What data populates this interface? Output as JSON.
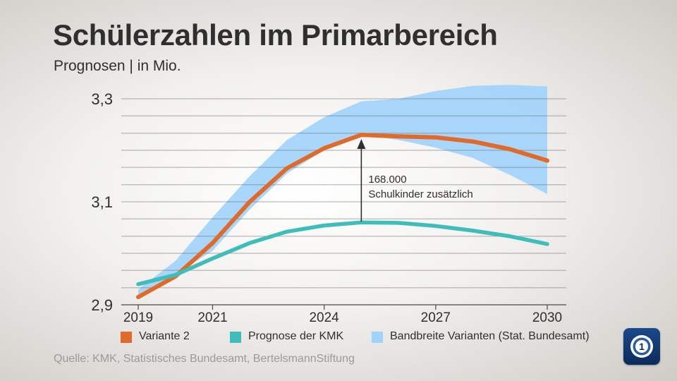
{
  "header": {
    "title": "Schülerzahlen im Primarbereich",
    "subtitle": "Prognosen | in Mio."
  },
  "legend": [
    {
      "label": "Variante 2",
      "color": "#e06a2a"
    },
    {
      "label": "Prognose der KMK",
      "color": "#3fbdb9"
    },
    {
      "label": "Bandbreite Varianten (Stat. Bundesamt)",
      "color": "#9fd3fb"
    }
  ],
  "source": "Quelle: KMK, Statistisches Bundesamt, BertelsmannStiftung",
  "logo": {
    "icon": "ard-logo-icon"
  },
  "chart_data": {
    "type": "line",
    "title": "Schülerzahlen im Primarbereich",
    "subtitle": "Prognosen | in Mio.",
    "xlabel": "",
    "ylabel": "",
    "xlim": [
      2019,
      2030
    ],
    "ylim": [
      2.9,
      3.3
    ],
    "grid": true,
    "legend_position": "bottom",
    "x_ticks": [
      {
        "value": 2019,
        "label": "2019"
      },
      {
        "value": 2021,
        "label": "2021"
      },
      {
        "value": 2024,
        "label": "2024"
      },
      {
        "value": 2027,
        "label": "2027"
      },
      {
        "value": 2030,
        "label": "2030"
      }
    ],
    "y_ticks": [
      {
        "value": 2.9,
        "label": "2,9"
      },
      {
        "value": 3.1,
        "label": "3,1"
      },
      {
        "value": 3.3,
        "label": "3,3"
      }
    ],
    "y_grid_values": [
      2.9,
      2.933,
      2.967,
      3.0,
      3.033,
      3.067,
      3.1,
      3.133,
      3.167,
      3.2,
      3.233,
      3.267,
      3.3
    ],
    "series": [
      {
        "name": "Variante 2",
        "color": "#e06a2a",
        "x": [
          2019,
          2020,
          2021,
          2022,
          2023,
          2024,
          2025,
          2026,
          2027,
          2028,
          2029,
          2030
        ],
        "values": [
          2.915,
          2.955,
          3.02,
          3.1,
          3.165,
          3.204,
          3.23,
          3.227,
          3.225,
          3.217,
          3.202,
          3.18
        ]
      },
      {
        "name": "Prognose der KMK",
        "color": "#3fbdb9",
        "x": [
          2019,
          2020,
          2021,
          2022,
          2023,
          2024,
          2025,
          2026,
          2027,
          2028,
          2029,
          2030
        ],
        "values": [
          2.94,
          2.958,
          2.99,
          3.02,
          3.042,
          3.054,
          3.06,
          3.059,
          3.053,
          3.044,
          3.033,
          3.018
        ]
      }
    ],
    "band": {
      "name": "Bandbreite Varianten (Stat. Bundesamt)",
      "color": "#9fd3fb",
      "x": [
        2019,
        2020,
        2021,
        2022,
        2023,
        2024,
        2025,
        2026,
        2027,
        2028,
        2029,
        2030
      ],
      "upper": [
        2.93,
        2.985,
        3.07,
        3.15,
        3.22,
        3.264,
        3.295,
        3.3,
        3.315,
        3.325,
        3.327,
        3.324
      ],
      "lower": [
        2.92,
        2.96,
        3.005,
        3.085,
        3.155,
        3.2,
        3.23,
        3.22,
        3.205,
        3.185,
        3.152,
        3.115
      ]
    },
    "annotation": {
      "x": 2025,
      "y_from": 3.06,
      "y_to": 3.23,
      "value": "168.000",
      "text": "Schulkinder zusätzlich"
    }
  }
}
